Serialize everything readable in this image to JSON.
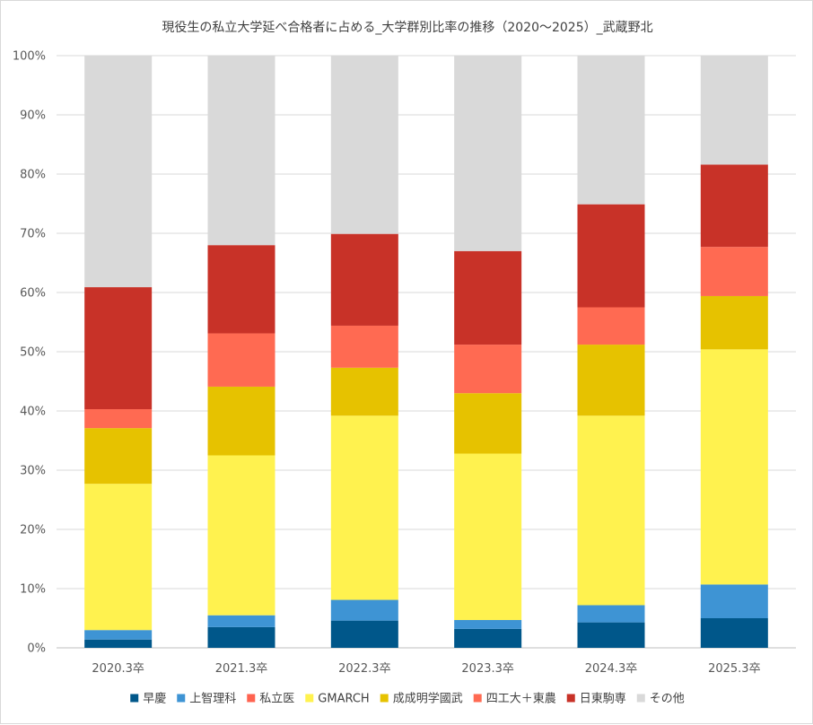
{
  "chart_data": {
    "type": "bar",
    "stacked": true,
    "title": "現役生の私立大学延べ合格者に占める_大学群別比率の推移（2020～2025）_武蔵野北",
    "xlabel": "",
    "ylabel": "",
    "ylim": [
      0,
      100
    ],
    "ytick_labels": [
      "0%",
      "10%",
      "20%",
      "30%",
      "40%",
      "50%",
      "60%",
      "70%",
      "80%",
      "90%",
      "100%"
    ],
    "grid": true,
    "legend_position": "bottom",
    "categories": [
      "2020.3卒",
      "2021.3卒",
      "2022.3卒",
      "2023.3卒",
      "2024.3卒",
      "2025.3卒"
    ],
    "series": [
      {
        "name": "早慶",
        "color": "#00578a",
        "values": [
          1.4,
          3.5,
          4.6,
          3.2,
          4.3,
          5.0
        ]
      },
      {
        "name": "上智理科",
        "color": "#3e94d4",
        "values": [
          1.6,
          2.0,
          3.5,
          1.5,
          2.9,
          5.7
        ]
      },
      {
        "name": "私立医",
        "color": "#ff6350",
        "values": [
          0,
          0,
          0,
          0,
          0,
          0
        ]
      },
      {
        "name": "GMARCH",
        "color": "#fff24f",
        "values": [
          24.7,
          27.0,
          31.1,
          28.1,
          32.0,
          39.7
        ]
      },
      {
        "name": "成成明学國武",
        "color": "#e6c200",
        "values": [
          9.4,
          11.6,
          8.1,
          10.2,
          12.0,
          9.0
        ]
      },
      {
        "name": "四工大＋東農",
        "color": "#ff6a52",
        "values": [
          3.2,
          9.0,
          7.1,
          8.2,
          6.3,
          8.3
        ]
      },
      {
        "name": "日東駒専",
        "color": "#c83228",
        "values": [
          20.6,
          14.9,
          15.5,
          15.8,
          17.4,
          13.9
        ]
      },
      {
        "name": "その他",
        "color": "#d9d9d9",
        "values": [
          39.1,
          32.0,
          30.1,
          33.0,
          25.1,
          18.4
        ]
      }
    ]
  }
}
